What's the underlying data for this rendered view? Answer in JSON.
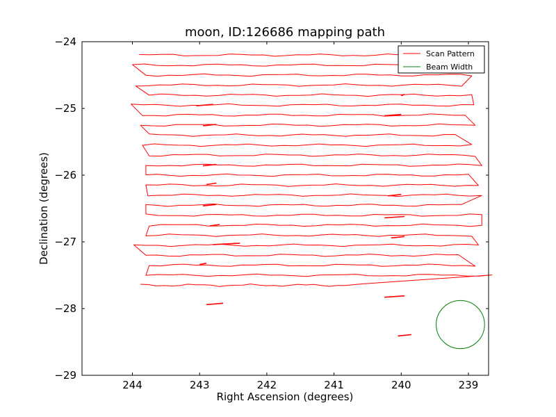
{
  "chart_data": {
    "type": "line",
    "title": "moon, ID:126686 mapping path",
    "xlabel": "Right Ascension (degrees)",
    "ylabel": "Declination (degrees)",
    "xlim": [
      244.75,
      238.7
    ],
    "ylim": [
      -29,
      -24
    ],
    "x_ticks": [
      244,
      243,
      242,
      241,
      240,
      239
    ],
    "x_tick_labels": [
      "244",
      "243",
      "242",
      "241",
      "240",
      "239"
    ],
    "y_ticks": [
      -24,
      -25,
      -26,
      -27,
      -28,
      -29
    ],
    "y_tick_labels": [
      "−24",
      "−25",
      "−26",
      "−27",
      "−28",
      "−29"
    ],
    "grid": false,
    "legend_position": "top-right",
    "series": [
      {
        "name": "Scan Pattern",
        "color": "#ff0000",
        "scan_rows": {
          "dec_start": -24.2,
          "dec_step": -0.15,
          "left_ra": [
            243.9,
            244.0,
            243.8,
            243.95,
            243.75,
            244.02,
            243.85,
            243.88,
            243.75,
            243.85,
            243.75,
            243.8,
            243.8,
            243.8,
            243.77,
            243.8,
            243.8,
            243.75,
            243.8,
            243.98,
            243.8,
            243.75,
            243.8,
            243.88
          ],
          "right_ra": [
            239.2,
            238.95,
            238.95,
            239.1,
            238.95,
            238.92,
            239.05,
            238.9,
            239.2,
            238.95,
            238.9,
            238.8,
            239.0,
            238.85,
            238.8,
            239.1,
            238.8,
            238.8,
            238.95,
            238.85,
            239.15,
            238.9,
            238.65,
            240.6
          ],
          "wobble_amp": 0.012
        },
        "glitches": [
          {
            "dec": -24.95,
            "ra1": 243.05,
            "ra2": 242.8
          },
          {
            "dec": -25.25,
            "ra1": 242.95,
            "ra2": 242.75
          },
          {
            "dec": -25.85,
            "ra1": 242.95,
            "ra2": 242.75
          },
          {
            "dec": -26.13,
            "ra1": 242.9,
            "ra2": 242.75
          },
          {
            "dec": -26.45,
            "ra1": 242.95,
            "ra2": 242.75
          },
          {
            "dec": -26.75,
            "ra1": 242.85,
            "ra2": 242.7
          },
          {
            "dec": -27.03,
            "ra1": 242.8,
            "ra2": 242.4
          },
          {
            "dec": -27.33,
            "ra1": 243.0,
            "ra2": 242.9
          },
          {
            "dec": -27.93,
            "ra1": 242.9,
            "ra2": 242.65
          },
          {
            "dec": -24.8,
            "ra1": 240.0,
            "ra2": 239.95
          },
          {
            "dec": -25.1,
            "ra1": 240.25,
            "ra2": 240.0
          },
          {
            "dec": -26.3,
            "ra1": 240.2,
            "ra2": 240.0
          },
          {
            "dec": -26.63,
            "ra1": 240.25,
            "ra2": 239.95
          },
          {
            "dec": -26.93,
            "ra1": 240.15,
            "ra2": 239.95
          },
          {
            "dec": -27.82,
            "ra1": 240.25,
            "ra2": 239.95
          },
          {
            "dec": -28.4,
            "ra1": 240.05,
            "ra2": 239.85
          }
        ]
      },
      {
        "name": "Beam Width",
        "color": "#008000",
        "circle": {
          "center_ra": 239.12,
          "center_dec": -28.24,
          "radius_deg": 0.36
        }
      }
    ]
  }
}
